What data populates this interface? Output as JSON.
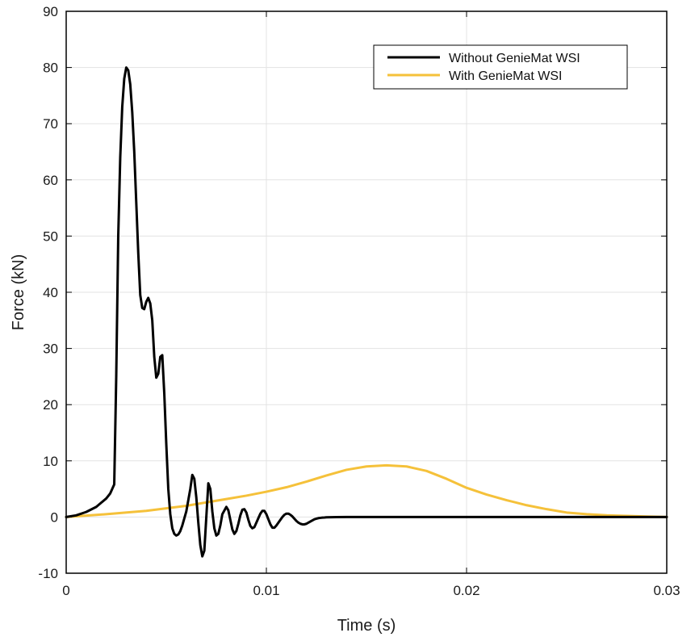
{
  "chart_data": {
    "type": "line",
    "title": "",
    "xlabel": "Time (s)",
    "ylabel": "Force (kN)",
    "xlim": [
      0,
      0.03
    ],
    "ylim": [
      -10,
      90
    ],
    "x_ticks": [
      0,
      0.01,
      0.02,
      0.03
    ],
    "x_tick_labels": [
      "0",
      "0.01",
      "0.02",
      "0.03"
    ],
    "y_ticks": [
      -10,
      0,
      10,
      20,
      30,
      40,
      50,
      60,
      70,
      80,
      90
    ],
    "y_tick_labels": [
      "-10",
      "0",
      "10",
      "20",
      "30",
      "40",
      "50",
      "60",
      "70",
      "80",
      "90"
    ],
    "grid": true,
    "legend_position": "top-right",
    "series": [
      {
        "name": "Without GenieMat WSI",
        "color": "#000000",
        "x": [
          0,
          0.0005,
          0.001,
          0.0015,
          0.002,
          0.0022,
          0.0024,
          0.0025,
          0.0026,
          0.0027,
          0.0028,
          0.0029,
          0.003,
          0.0031,
          0.0032,
          0.0033,
          0.0034,
          0.0035,
          0.0036,
          0.0037,
          0.0038,
          0.0039,
          0.004,
          0.0041,
          0.0042,
          0.0043,
          0.0044,
          0.0045,
          0.0046,
          0.0047,
          0.0048,
          0.0049,
          0.005,
          0.0051,
          0.0052,
          0.0053,
          0.0054,
          0.0055,
          0.0056,
          0.0057,
          0.0058,
          0.006,
          0.0062,
          0.0063,
          0.0064,
          0.0065,
          0.0066,
          0.0067,
          0.0068,
          0.0069,
          0.007,
          0.0071,
          0.0072,
          0.0073,
          0.0074,
          0.0075,
          0.0076,
          0.0077,
          0.0078,
          0.008,
          0.0081,
          0.0082,
          0.0083,
          0.0084,
          0.0085,
          0.0086,
          0.0087,
          0.0088,
          0.0089,
          0.009,
          0.0091,
          0.0092,
          0.0093,
          0.0094,
          0.0095,
          0.0096,
          0.0097,
          0.0098,
          0.0099,
          0.01,
          0.0101,
          0.0102,
          0.0103,
          0.0104,
          0.0105,
          0.0106,
          0.0107,
          0.0108,
          0.0109,
          0.011,
          0.0111,
          0.0112,
          0.0113,
          0.0114,
          0.0115,
          0.0116,
          0.0117,
          0.0118,
          0.0119,
          0.012,
          0.0121,
          0.0122,
          0.0123,
          0.0124,
          0.0125,
          0.0126,
          0.0127,
          0.0128,
          0.0129,
          0.013,
          0.0135,
          0.014,
          0.015,
          0.02,
          0.025,
          0.03
        ],
        "y": [
          0,
          0.3,
          0.9,
          1.8,
          3.3,
          4.2,
          5.8,
          25,
          50,
          64,
          73,
          78,
          80,
          79.5,
          77,
          72,
          65,
          56,
          47,
          39.5,
          37.2,
          37,
          38.3,
          39,
          38,
          35,
          28.5,
          24.8,
          25.5,
          28.5,
          28.8,
          22,
          13,
          5,
          0.5,
          -2,
          -3,
          -3.3,
          -3.1,
          -2.5,
          -1.5,
          1,
          5,
          7.5,
          6.8,
          3.5,
          -1,
          -5,
          -7,
          -6,
          0,
          6,
          5,
          1,
          -2,
          -3.3,
          -3,
          -1.5,
          0.5,
          1.8,
          1.2,
          -0.5,
          -2.2,
          -3,
          -2.5,
          -1.2,
          0.3,
          1.3,
          1.4,
          0.8,
          -0.5,
          -1.6,
          -2,
          -1.8,
          -1,
          -0.2,
          0.6,
          1.1,
          1.1,
          0.5,
          -0.4,
          -1.3,
          -1.9,
          -1.9,
          -1.5,
          -1,
          -0.5,
          0,
          0.4,
          0.6,
          0.6,
          0.4,
          0.1,
          -0.3,
          -0.7,
          -1,
          -1.2,
          -1.3,
          -1.3,
          -1.2,
          -1,
          -0.8,
          -0.6,
          -0.4,
          -0.3,
          -0.2,
          -0.15,
          -0.1,
          -0.08,
          -0.05,
          -0.02,
          0,
          0,
          0,
          0,
          0
        ]
      },
      {
        "name": "With GenieMat WSI",
        "color": "#f5c13a",
        "x": [
          0,
          0.002,
          0.004,
          0.006,
          0.008,
          0.009,
          0.01,
          0.011,
          0.012,
          0.013,
          0.014,
          0.015,
          0.016,
          0.017,
          0.018,
          0.019,
          0.02,
          0.021,
          0.022,
          0.023,
          0.024,
          0.025,
          0.026,
          0.027,
          0.028,
          0.029,
          0.03
        ],
        "y": [
          0,
          0.5,
          1.1,
          2,
          3.2,
          3.8,
          4.5,
          5.3,
          6.3,
          7.4,
          8.4,
          9,
          9.2,
          9,
          8.2,
          6.8,
          5.2,
          4,
          3,
          2.1,
          1.4,
          0.8,
          0.5,
          0.3,
          0.2,
          0.1,
          0
        ]
      }
    ]
  }
}
